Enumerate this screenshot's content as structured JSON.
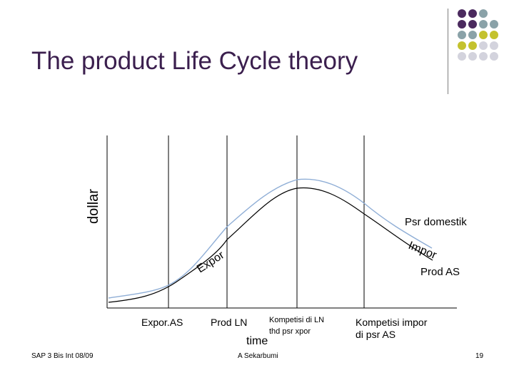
{
  "slide": {
    "title": "The product Life Cycle theory",
    "footer_left": "SAP 3 Bis Int 08/09",
    "footer_center": "A Sekarbumi",
    "page_number": "19"
  },
  "decor": {
    "dot_colors": [
      "#4b2a5e",
      "#8aa2a8",
      "#c4c22e",
      "#d3d3dd"
    ]
  },
  "diagram": {
    "y_axis_label": "dollar",
    "x_axis_label": "time",
    "curve_labels": {
      "domestic": "Psr domestik",
      "import": "Impor",
      "export": "Expor",
      "prod_as": "Prod AS"
    },
    "phase_labels": {
      "phase1": "Expor.AS",
      "phase2": "Prod LN",
      "phase3_line1": "Kompetisi di LN",
      "phase3_line2": "thd psr xpor",
      "phase4_line1": "Kompetisi impor",
      "phase4_line2": "di psr AS"
    },
    "colors": {
      "domestic_curve": "#8faed6",
      "production_curve": "#000000",
      "axis": "#000000"
    }
  }
}
